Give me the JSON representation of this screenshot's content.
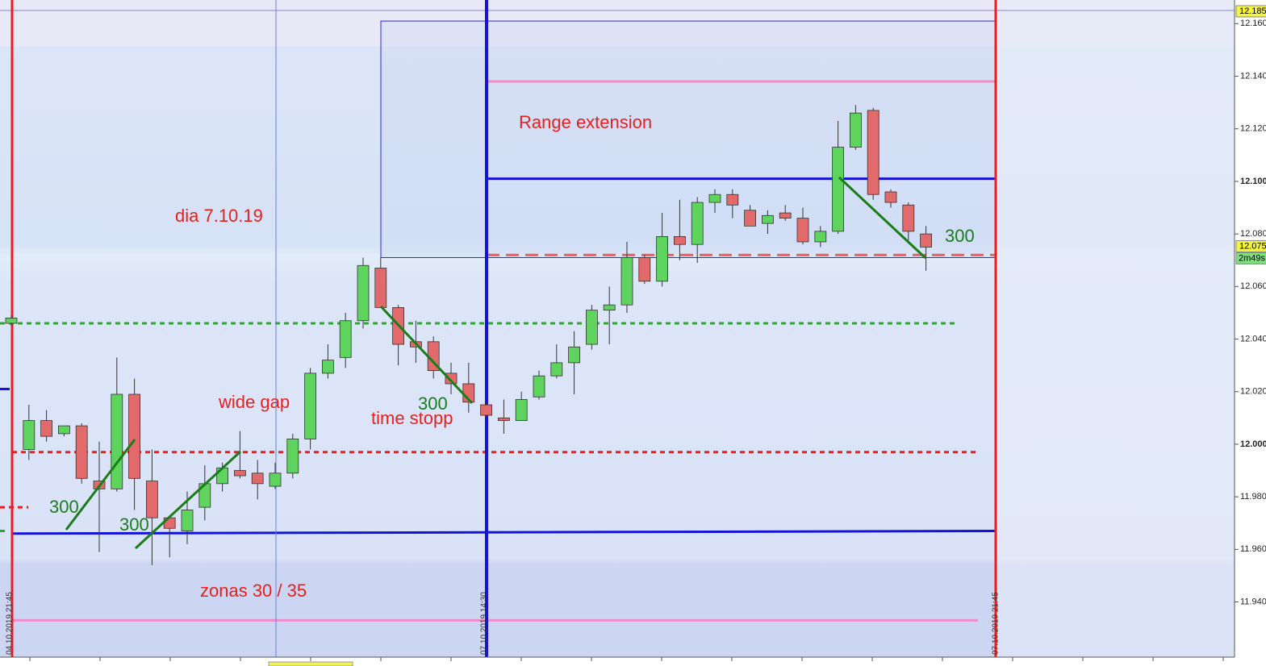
{
  "chart_data": {
    "type": "candlestick",
    "open": [
      12.046,
      11.998,
      12.009,
      12.004,
      12.007,
      11.986,
      11.983,
      12.019,
      11.986,
      11.972,
      11.967,
      11.976,
      11.985,
      11.99,
      11.989,
      11.984,
      11.989,
      12.002,
      12.027,
      12.033,
      12.047,
      12.067,
      12.052,
      12.039,
      12.039,
      12.027,
      12.023,
      12.015,
      12.01,
      12.009,
      12.018,
      12.026,
      12.031,
      12.038,
      12.051,
      12.053,
      12.071,
      12.062,
      12.079,
      12.076,
      12.092,
      12.095,
      12.089,
      12.084,
      12.088,
      12.086,
      12.077,
      12.081,
      12.113,
      12.127,
      12.096,
      12.091,
      12.08
    ],
    "high": [
      12.049,
      12.015,
      12.013,
      12.007,
      12.008,
      12.001,
      12.033,
      12.025,
      11.998,
      11.973,
      11.982,
      11.992,
      11.993,
      12.005,
      11.994,
      11.993,
      12.004,
      12.029,
      12.038,
      12.05,
      12.071,
      12.071,
      12.053,
      12.047,
      12.041,
      12.031,
      12.031,
      12.016,
      12.017,
      12.02,
      12.028,
      12.038,
      12.043,
      12.053,
      12.06,
      12.077,
      12.072,
      12.088,
      12.093,
      12.094,
      12.097,
      12.097,
      12.091,
      12.089,
      12.091,
      12.09,
      12.083,
      12.123,
      12.129,
      12.128,
      12.097,
      12.092,
      12.083
    ],
    "low": [
      12.045,
      11.994,
      12.001,
      12.003,
      11.985,
      11.959,
      11.982,
      11.975,
      11.954,
      11.957,
      11.962,
      11.971,
      11.982,
      11.987,
      11.979,
      11.983,
      11.987,
      11.998,
      12.025,
      12.029,
      12.044,
      12.052,
      12.03,
      12.031,
      12.025,
      12.019,
      12.012,
      12.01,
      12.004,
      12.009,
      12.017,
      12.025,
      12.019,
      12.036,
      12.038,
      12.05,
      12.061,
      12.06,
      12.07,
      12.069,
      12.088,
      12.086,
      12.083,
      12.08,
      12.085,
      12.076,
      12.075,
      12.08,
      12.112,
      12.093,
      12.09,
      12.077,
      12.066
    ],
    "close": [
      12.048,
      12.009,
      12.003,
      12.007,
      11.987,
      11.983,
      12.019,
      11.987,
      11.972,
      11.968,
      11.975,
      11.985,
      11.991,
      11.988,
      11.985,
      11.989,
      12.002,
      12.027,
      12.032,
      12.047,
      12.068,
      12.052,
      12.038,
      12.037,
      12.028,
      12.023,
      12.016,
      12.011,
      12.009,
      12.017,
      12.026,
      12.031,
      12.037,
      12.051,
      12.053,
      12.071,
      12.062,
      12.079,
      12.076,
      12.092,
      12.095,
      12.091,
      12.083,
      12.087,
      12.086,
      12.077,
      12.081,
      12.113,
      12.126,
      12.095,
      12.092,
      12.081,
      12.075
    ],
    "up_color": "#5ed35e",
    "down_color": "#e36a6a",
    "ylim": [
      11.919,
      12.169
    ],
    "yticks": [
      {
        "value": 11.94,
        "label": "11.940"
      },
      {
        "value": 11.96,
        "label": "11.960"
      },
      {
        "value": 11.98,
        "label": "11.980"
      },
      {
        "value": 12,
        "label": "12.000"
      },
      {
        "value": 12.02,
        "label": "12.020"
      },
      {
        "value": 12.04,
        "label": "12.040"
      },
      {
        "value": 12.06,
        "label": "12.060"
      },
      {
        "value": 12.08,
        "label": "12.080"
      },
      {
        "value": 12.1,
        "label": "12.100"
      },
      {
        "value": 12.12,
        "label": "12.120"
      },
      {
        "value": 12.14,
        "label": "12.140"
      },
      {
        "value": 12.16,
        "label": "12.160"
      }
    ],
    "top_price_label": "12.185",
    "last_price": {
      "value": 12.075,
      "label": "12.075"
    },
    "timer": "2m49s",
    "x_labels": [
      "04.10.2019 21:45",
      "07.10.2019 14:30",
      "07.10.2019 21:45"
    ],
    "range_box": {
      "top": 12.161,
      "bottom": 12.071
    },
    "levels": [
      {
        "from": 12.138,
        "to": 12.138,
        "color": "#f08ccc",
        "style": "solid"
      },
      {
        "from": 12.101,
        "to": 12.101,
        "color": "#1414d8",
        "style": "solid"
      },
      {
        "from": 12.072,
        "to": 12.072,
        "color": "#e06060",
        "style": "dashed"
      },
      {
        "from": 12.046,
        "to": 12.046,
        "color": "#2ea82e",
        "style": "dotted"
      },
      {
        "from": 11.997,
        "to": 11.997,
        "color": "#ee1c1c",
        "style": "dotted"
      },
      {
        "from": 11.966,
        "to": 11.967,
        "color": "#1414d8",
        "style": "solid"
      },
      {
        "from": 11.933,
        "to": 11.933,
        "color": "#f08ccc",
        "style": "solid"
      },
      {
        "from": 11.976,
        "to": 11.976,
        "color": "#ee1c1c",
        "style": "dotted"
      },
      {
        "from": 11.967,
        "to": 11.967,
        "color": "#2ea82e",
        "style": "dotted"
      },
      {
        "from": 12.021,
        "to": 12.021,
        "color": "#1414d8",
        "style": "solid"
      }
    ],
    "annotations": [
      {
        "text": "Range extension",
        "color": "#e8201c"
      },
      {
        "text": "dia 7.10.19",
        "color": "#e8201c"
      },
      {
        "text": "wide gap",
        "color": "#e8201c"
      },
      {
        "text": "time stopp",
        "color": "#e8201c"
      },
      {
        "text": "zonas 30 / 35",
        "color": "#e8201c"
      },
      {
        "text": "300",
        "color": "#1b7d1b"
      },
      {
        "text": "300",
        "color": "#1b7d1b"
      },
      {
        "text": "300",
        "color": "#1b7d1b"
      },
      {
        "text": "300",
        "color": "#1b7d1b"
      }
    ]
  }
}
